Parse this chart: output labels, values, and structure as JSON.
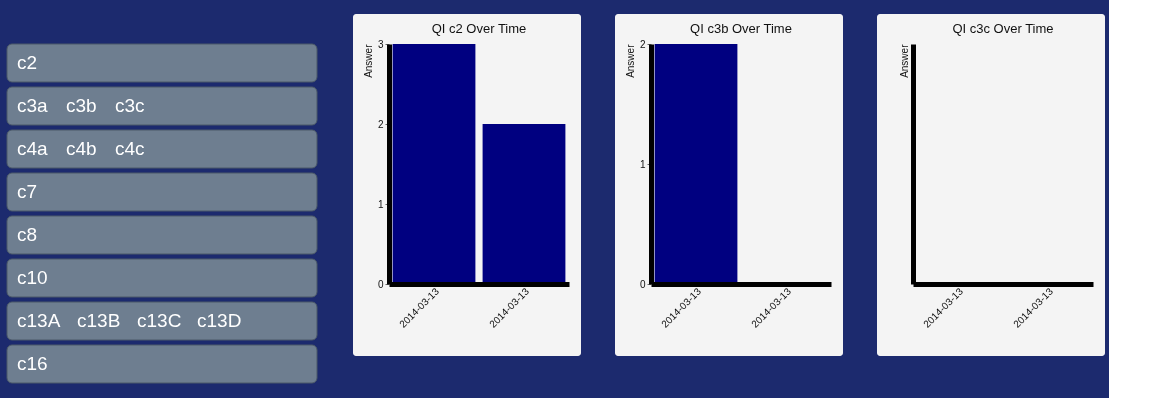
{
  "chart_data": [
    {
      "type": "other",
      "annotations": [
        "c2",
        "c3a",
        "c3b",
        "c3c",
        "c4a",
        "c4b",
        "c4c",
        "c7",
        "c8",
        "c10",
        "c13A",
        "c13B",
        "c13C",
        "c13D",
        "c16"
      ]
    },
    {
      "type": "bar",
      "title": "QI c2 Over Time",
      "ylabel": "Answer",
      "categories": [
        "2014-03-13",
        "2014-03-13"
      ],
      "values": [
        3,
        2
      ],
      "color": "#000080",
      "ylim": [
        0,
        3
      ],
      "yticks": [
        0,
        1,
        2,
        3
      ],
      "grid": false
    },
    {
      "type": "bar",
      "title": "QI c3b Over Time",
      "ylabel": "Answer",
      "categories": [
        "2014-03-13",
        "2014-03-13"
      ],
      "values": [
        2,
        0
      ],
      "color": "#000080",
      "ylim": [
        0,
        2
      ],
      "yticks": [
        0,
        1,
        2
      ],
      "grid": false
    },
    {
      "type": "other",
      "title": "QI c3c Over Time",
      "ylabel": "Answer",
      "categories": [
        "2014-03-13",
        "2014-03-13"
      ]
    }
  ]
}
